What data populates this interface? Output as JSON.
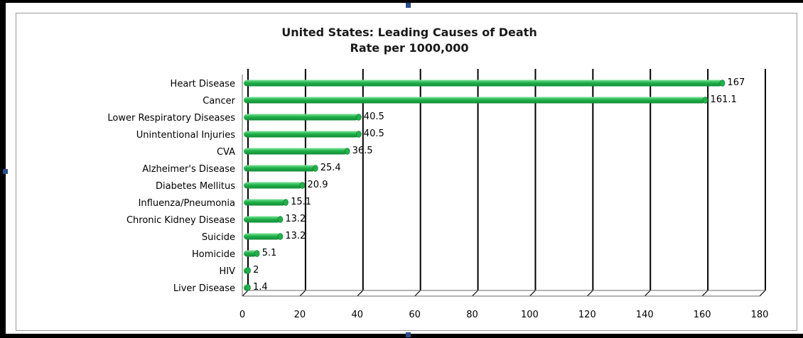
{
  "chart_data": {
    "type": "bar",
    "orientation": "horizontal",
    "title": "United States: Leading Causes of Death",
    "subtitle": "Rate per 1000,000",
    "categories": [
      "Heart Disease",
      "Cancer",
      "Lower Respiratory Diseases",
      "Unintentional Injuries",
      "CVA",
      "Alzheimer's Disease",
      "Diabetes Mellitus",
      "Influenza/Pneumonia",
      "Chronic Kidney Disease",
      "Suicide",
      "Homicide",
      "HIV",
      "Liver Disease"
    ],
    "values": [
      167,
      161.1,
      40.5,
      40.5,
      36.5,
      25.4,
      20.9,
      15.1,
      13.2,
      13.2,
      5.1,
      2,
      1.4
    ],
    "data_labels": [
      "167",
      "161.1",
      "40.5",
      "40.5",
      "36.5",
      "25.4",
      "20.9",
      "15.1",
      "13.2",
      "13.2",
      "5.1",
      "2",
      "1.4"
    ],
    "xlim": [
      0,
      180
    ],
    "xticks": [
      0,
      20,
      40,
      60,
      80,
      100,
      120,
      140,
      160,
      180
    ],
    "xtick_labels": [
      "0",
      "20",
      "40",
      "60",
      "80",
      "100",
      "120",
      "140",
      "160",
      "180"
    ],
    "grid": true,
    "legend": "none",
    "bar_color": "#1fb24a",
    "bar_highlight": "#7fe39a",
    "grid_color": "#000000"
  }
}
